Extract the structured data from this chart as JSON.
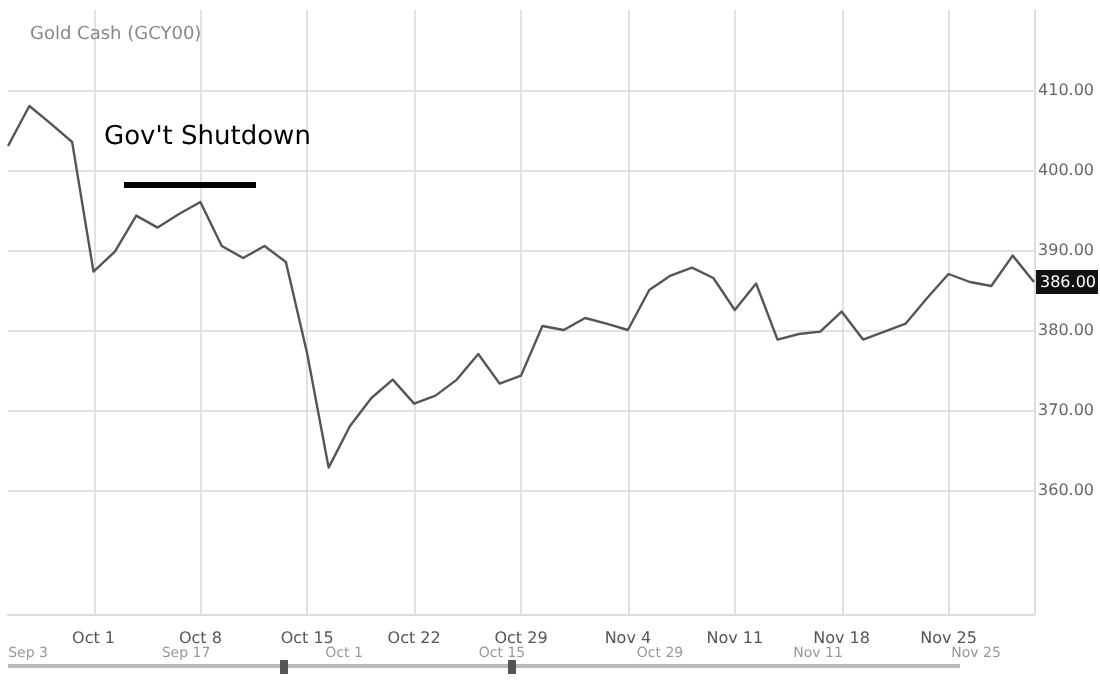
{
  "chart_data": {
    "type": "line",
    "title": "Gold Cash (GCY00)",
    "categories": [
      null,
      null,
      null,
      null,
      "Oct 1",
      null,
      null,
      null,
      null,
      "Oct 8",
      null,
      null,
      null,
      null,
      "Oct 15",
      null,
      null,
      null,
      null,
      "Oct 22",
      null,
      null,
      null,
      null,
      "Oct 29",
      null,
      null,
      null,
      null,
      "Nov 4",
      null,
      null,
      null,
      null,
      "Nov 11",
      null,
      null,
      null,
      null,
      "Nov 18",
      null,
      null,
      null,
      null,
      "Nov 25",
      null,
      null,
      null,
      null
    ],
    "series": [
      {
        "color": "#555555",
        "values": [
          403,
          408,
          405.8,
          403.5,
          387.3,
          389.8,
          394.3,
          392.8,
          394.5,
          396,
          390.5,
          389,
          390.5,
          388.5,
          377,
          362.8,
          368,
          371.5,
          373.8,
          370.8,
          371.8,
          373.8,
          377,
          373.3,
          374.3,
          380.5,
          380,
          381.5,
          380.8,
          380,
          385,
          386.8,
          387.8,
          386.5,
          382.5,
          385.8,
          378.8,
          379.5,
          379.8,
          382.3,
          378.8,
          379.8,
          380.8,
          384,
          387,
          386,
          385.5,
          389.3,
          386
        ]
      }
    ],
    "ylim": [
      344.5,
      420
    ],
    "yticks": [
      {
        "value": 360,
        "label": "360.00"
      },
      {
        "value": 370,
        "label": "370.00"
      },
      {
        "value": 380,
        "label": "380.00"
      },
      {
        "value": 390,
        "label": "390.00"
      },
      {
        "value": 400,
        "label": "400.00"
      },
      {
        "value": 410,
        "label": "410.00"
      }
    ],
    "annotations": [
      "Gov't Shutdown",
      "386.00",
      "Sep 3",
      "Sep 17",
      "Oct 1",
      "Oct 15",
      "Oct 29",
      "Nov 11",
      "Nov 25"
    ],
    "grid": true,
    "marker": "none",
    "line_style": "solid"
  }
}
